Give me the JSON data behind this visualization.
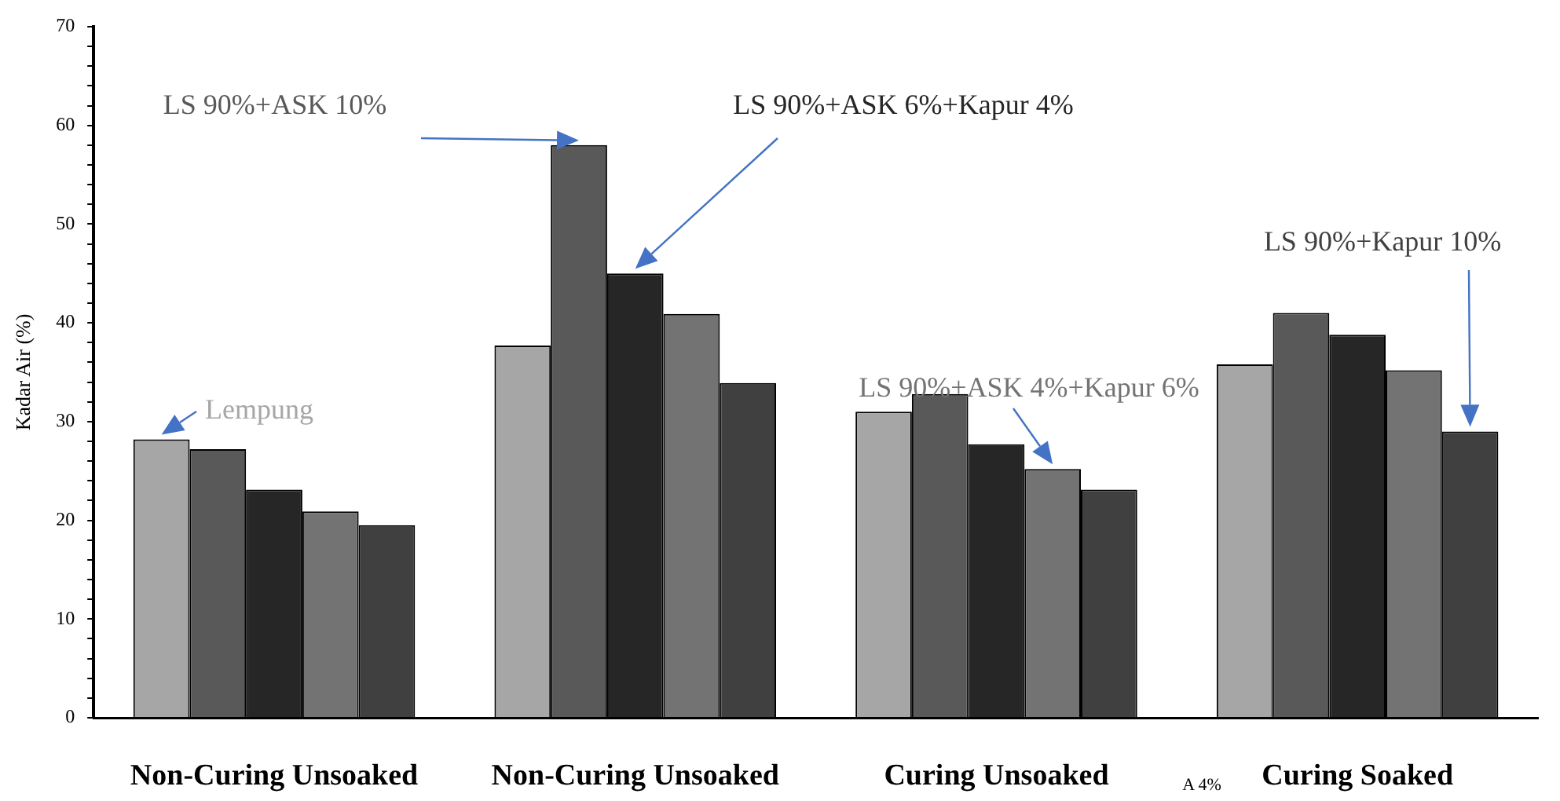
{
  "chart_data": {
    "type": "bar",
    "ylabel": "Kadar Air (%)",
    "categories": [
      "Non-Curing Unsoaked",
      "Non-Curing Unsoaked",
      "Curing Unsoaked",
      "Curing Soaked"
    ],
    "series": [
      {
        "name": "Lempung",
        "color": "#a6a6a6",
        "values": [
          28.2,
          37.7,
          31.0,
          35.8
        ]
      },
      {
        "name": "LS 90%+ASK 10%",
        "color": "#595959",
        "values": [
          27.2,
          58.0,
          32.8,
          41.0
        ]
      },
      {
        "name": "LS 90%+ASK 6%+Kapur 4%",
        "color": "#262626",
        "values": [
          23.1,
          45.0,
          27.7,
          38.8
        ]
      },
      {
        "name": "LS 90%+ASK 4%+Kapur 6%",
        "color": "#737373",
        "values": [
          20.9,
          40.9,
          25.2,
          35.2
        ]
      },
      {
        "name": "LS 90%+Kapur 10%",
        "color": "#404040",
        "values": [
          19.5,
          33.9,
          23.1,
          29.0
        ]
      }
    ],
    "ylim": [
      0,
      70
    ],
    "yticks": [
      0,
      {
        "value": 2,
        "label": null
      },
      {
        "value": 4,
        "label": null
      },
      {
        "value": 6,
        "label": null
      },
      {
        "value": 8,
        "label": null
      },
      10,
      {
        "value": 12,
        "label": null
      },
      {
        "value": 14,
        "label": null
      },
      {
        "value": 16,
        "label": null
      },
      {
        "value": 18,
        "label": null
      },
      20,
      {
        "value": 22,
        "label": null
      },
      {
        "value": 24,
        "label": null
      },
      {
        "value": 26,
        "label": null
      },
      {
        "value": 28,
        "label": null
      },
      30,
      {
        "value": 32,
        "label": null
      },
      {
        "value": 34,
        "label": null
      },
      {
        "value": 36,
        "label": null
      },
      {
        "value": 38,
        "label": null
      },
      40,
      {
        "value": 42,
        "label": null
      },
      {
        "value": 44,
        "label": null
      },
      {
        "value": 46,
        "label": null
      },
      {
        "value": 48,
        "label": null
      },
      50,
      {
        "value": 52,
        "label": null
      },
      {
        "value": 54,
        "label": null
      },
      {
        "value": 56,
        "label": null
      },
      {
        "value": 58,
        "label": null
      },
      60,
      {
        "value": 62,
        "label": null
      },
      {
        "value": 64,
        "label": null
      },
      {
        "value": 66,
        "label": null
      },
      {
        "value": 68,
        "label": null
      },
      70
    ],
    "grid": false,
    "legend": false,
    "annotations": [
      "A 4%"
    ]
  }
}
